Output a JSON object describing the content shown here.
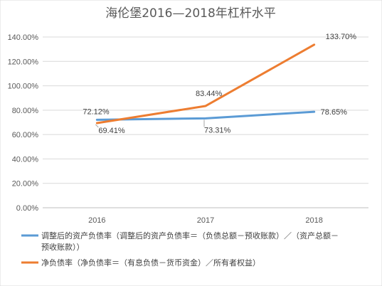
{
  "chart_data": {
    "type": "line",
    "title": "海伦堡2016—2018年杠杆水平",
    "xlabel": "",
    "ylabel": "",
    "categories": [
      "2016",
      "2017",
      "2018"
    ],
    "ylim": [
      0,
      140
    ],
    "y_ticks": [
      0,
      20,
      40,
      60,
      80,
      100,
      120,
      140
    ],
    "y_tick_labels": [
      "0.00%",
      "20.00%",
      "40.00%",
      "60.00%",
      "80.00%",
      "100.00%",
      "120.00%",
      "140.00%"
    ],
    "grid": true,
    "legend_position": "bottom",
    "series": [
      {
        "name": "调整后的资产负债率（调整后的资产负债率＝（负债总额－预收账款）／（资产总额－预收账款））",
        "legend_lines": [
          "调整后的资产负债率（调整后的资产负债率＝（负债总额－预收账款）／（资产总额－",
          "预收账款））"
        ],
        "values": [
          72.12,
          73.31,
          78.65
        ],
        "labels": [
          "72.12%",
          "73.31%",
          "78.65%"
        ],
        "color": "#5B9BD5"
      },
      {
        "name": "净负债率（净负债率＝（有息负债－货币资金）／所有者权益）",
        "legend_lines": [
          "净负债率（净负债率＝（有息负债－货币资金）／所有者权益）"
        ],
        "values": [
          69.41,
          83.44,
          133.7
        ],
        "labels": [
          "69.41%",
          "83.44%",
          "133.70%"
        ],
        "color": "#ED7D31"
      }
    ]
  }
}
